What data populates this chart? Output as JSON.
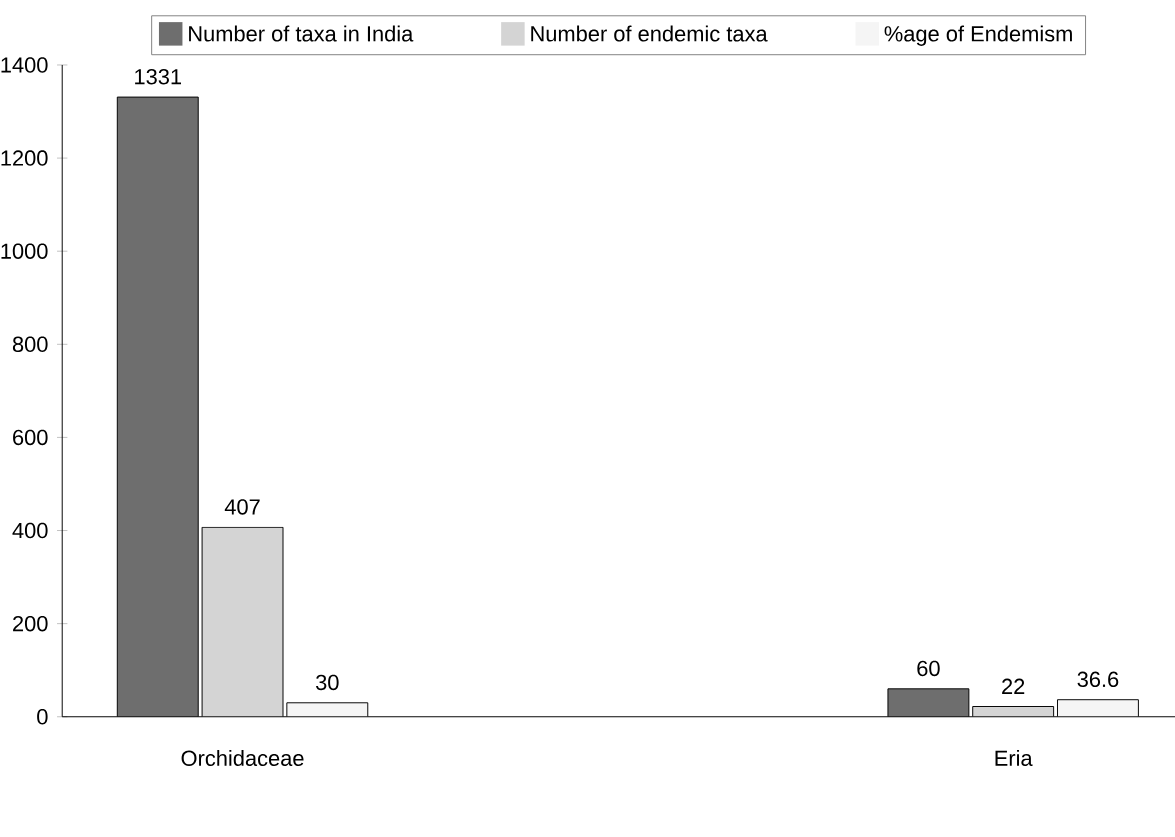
{
  "chart_data": {
    "type": "bar",
    "categories": [
      "Orchidaceae",
      "Eria"
    ],
    "series": [
      {
        "name": "Number of taxa in India",
        "color": "#6e6e6e",
        "values": [
          1331,
          60
        ]
      },
      {
        "name": "Number of endemic taxa",
        "color": "#d4d4d4",
        "values": [
          407,
          22
        ]
      },
      {
        "name": "%age of Endemism",
        "color": "#f5f5f5",
        "values": [
          30,
          36.6
        ]
      }
    ],
    "ylim": [
      0,
      1400
    ],
    "yticks": [
      0,
      200,
      400,
      600,
      800,
      1000,
      1200,
      1400
    ],
    "data_labels": true,
    "legend": "top",
    "grid": false
  }
}
